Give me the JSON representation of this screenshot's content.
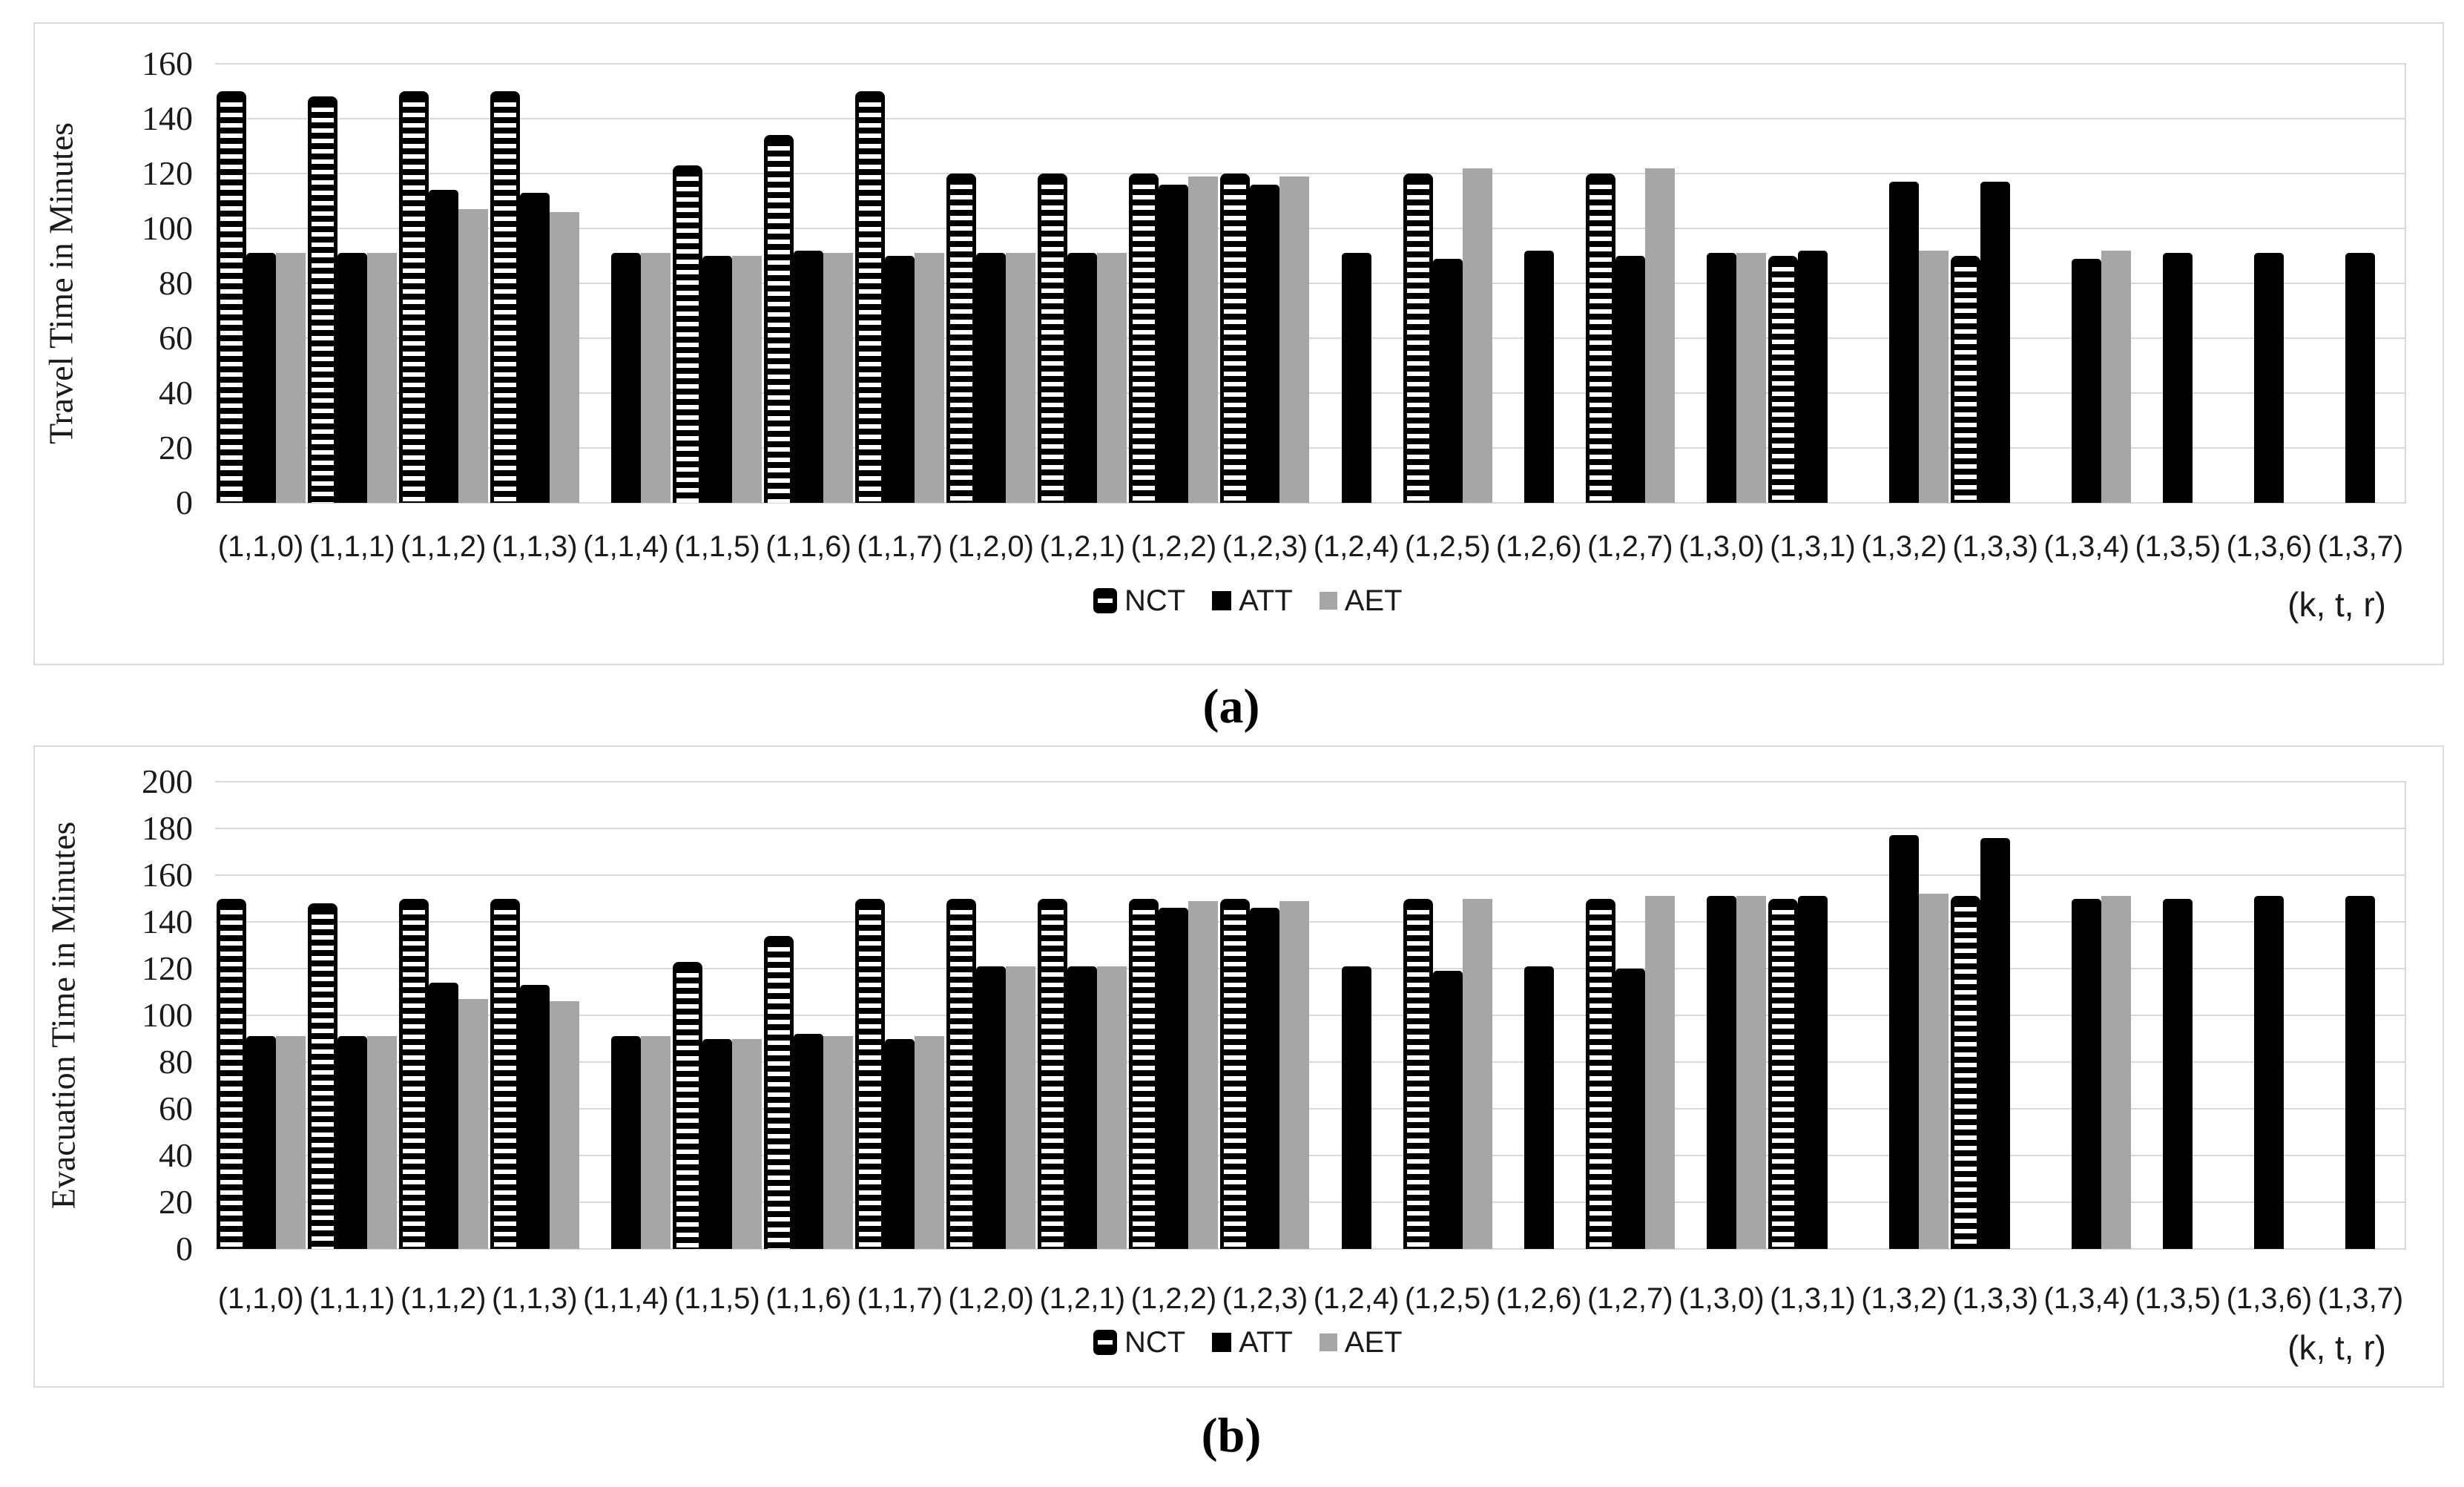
{
  "figure": {
    "background": "#ffffff"
  },
  "captions": {
    "a": "(a)",
    "b": "(b)"
  },
  "xaxis_note": "(k, t, r)",
  "legend": {
    "items": [
      {
        "label": "NCT",
        "swatch": "striped-black-white"
      },
      {
        "label": "ATT",
        "swatch": "solid-black"
      },
      {
        "label": "AET",
        "swatch": "solid-gray"
      }
    ]
  },
  "colors": {
    "att_bar": "#000000",
    "aet_bar": "#a6a6a6",
    "nct_bar_dark": "#000000",
    "nct_bar_light": "#ffffff",
    "gridline": "#d9d9d9",
    "panel_border": "#d9d9d9",
    "text": "#1a1a1a"
  },
  "chart_data": [
    {
      "id": "a",
      "type": "bar",
      "title": "",
      "xlabel": "(k, t, r)",
      "ylabel": "Travel Time in Minutes",
      "ylim": [
        0,
        160
      ],
      "ytick_step": 20,
      "yticks": [
        "0",
        "20",
        "40",
        "60",
        "80",
        "100",
        "120",
        "140",
        "160"
      ],
      "grid": true,
      "legend_position": "bottom",
      "categories": [
        "(1,1,0)",
        "(1,1,1)",
        "(1,1,2)",
        "(1,1,3)",
        "(1,1,4)",
        "(1,1,5)",
        "(1,1,6)",
        "(1,1,7)",
        "(1,2,0)",
        "(1,2,1)",
        "(1,2,2)",
        "(1,2,3)",
        "(1,2,4)",
        "(1,2,5)",
        "(1,2,6)",
        "(1,2,7)",
        "(1,3,0)",
        "(1,3,1)",
        "(1,3,2)",
        "(1,3,3)",
        "(1,3,4)",
        "(1,3,5)",
        "(1,3,6)",
        "(1,3,7)"
      ],
      "series": [
        {
          "name": "NCT",
          "values": [
            150,
            148,
            150,
            150,
            null,
            123,
            134,
            150,
            120,
            120,
            120,
            120,
            null,
            120,
            null,
            120,
            null,
            90,
            null,
            90,
            null,
            null,
            null,
            null
          ]
        },
        {
          "name": "ATT",
          "values": [
            91,
            91,
            114,
            113,
            91,
            90,
            92,
            90,
            91,
            91,
            116,
            116,
            91,
            89,
            92,
            90,
            91,
            92,
            117,
            117,
            89,
            91,
            91,
            91
          ]
        },
        {
          "name": "AET",
          "values": [
            91,
            91,
            107,
            106,
            91,
            90,
            91,
            91,
            91,
            91,
            119,
            119,
            null,
            122,
            null,
            122,
            91,
            null,
            92,
            null,
            92,
            null,
            null,
            null
          ]
        }
      ]
    },
    {
      "id": "b",
      "type": "bar",
      "title": "",
      "xlabel": "(k, t, r)",
      "ylabel": "Evacuation Time in Minutes",
      "ylim": [
        0,
        200
      ],
      "ytick_step": 20,
      "yticks": [
        "0",
        "20",
        "40",
        "60",
        "80",
        "100",
        "120",
        "140",
        "160",
        "180",
        "200"
      ],
      "grid": true,
      "legend_position": "bottom",
      "categories": [
        "(1,1,0)",
        "(1,1,1)",
        "(1,1,2)",
        "(1,1,3)",
        "(1,1,4)",
        "(1,1,5)",
        "(1,1,6)",
        "(1,1,7)",
        "(1,2,0)",
        "(1,2,1)",
        "(1,2,2)",
        "(1,2,3)",
        "(1,2,4)",
        "(1,2,5)",
        "(1,2,6)",
        "(1,2,7)",
        "(1,3,0)",
        "(1,3,1)",
        "(1,3,2)",
        "(1,3,3)",
        "(1,3,4)",
        "(1,3,5)",
        "(1,3,6)",
        "(1,3,7)"
      ],
      "series": [
        {
          "name": "NCT",
          "values": [
            150,
            148,
            150,
            150,
            null,
            123,
            134,
            150,
            150,
            150,
            150,
            150,
            null,
            150,
            null,
            150,
            null,
            150,
            null,
            151,
            null,
            null,
            null,
            null
          ]
        },
        {
          "name": "ATT",
          "values": [
            91,
            91,
            114,
            113,
            91,
            90,
            92,
            90,
            121,
            121,
            146,
            146,
            121,
            119,
            121,
            120,
            151,
            151,
            177,
            176,
            150,
            150,
            151,
            151
          ]
        },
        {
          "name": "AET",
          "values": [
            91,
            91,
            107,
            106,
            91,
            90,
            91,
            91,
            121,
            121,
            149,
            149,
            null,
            150,
            null,
            151,
            151,
            null,
            152,
            null,
            151,
            null,
            null,
            null
          ]
        }
      ]
    }
  ]
}
